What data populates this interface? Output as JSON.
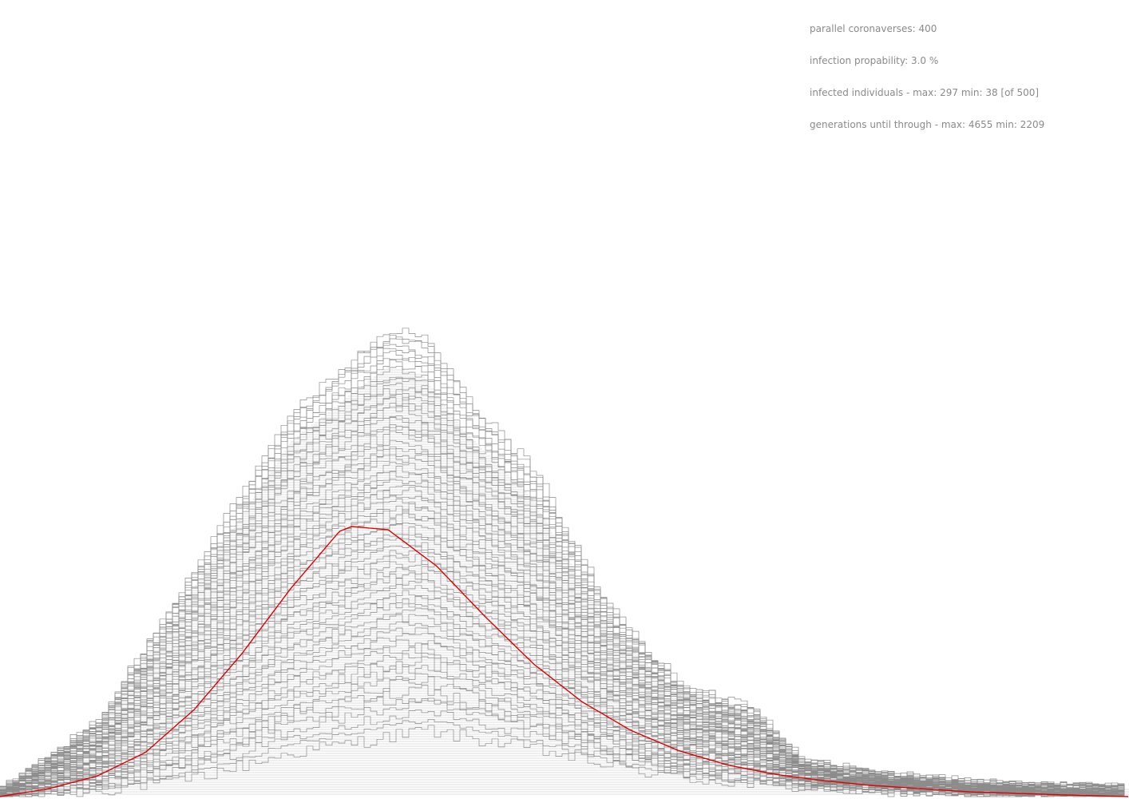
{
  "stats": {
    "parallel_coronaverses": "parallel coronaverses: 400",
    "infection_probability": "infection propability: 3.0 %",
    "infected_individuals": "infected individuals - max: 297 min: 38 [of 500]",
    "generations_until_through": "generations until through - max: 4655 min: 2209"
  },
  "chart_data": {
    "type": "line",
    "title": "",
    "xlabel": "",
    "ylabel": "",
    "grid": false,
    "legend": "none",
    "colors": {
      "simulation": "#8c8c8c",
      "average": "#e00000",
      "background": "#ffffff"
    },
    "population": 500,
    "runs": 400,
    "xlim": [
      0,
      4655
    ],
    "ylim": [
      0,
      300
    ],
    "simulation_envelope": {
      "name": "",
      "x": [
        0,
        400,
        800,
        1200,
        1600,
        1750,
        1900,
        2200,
        2500,
        2800,
        3100,
        3300,
        3600,
        4000,
        4300,
        4655
      ],
      "max": [
        4,
        48,
        145,
        245,
        297,
        290,
        255,
        205,
        120,
        70,
        55,
        22,
        14,
        8,
        6,
        5
      ],
      "min": [
        0,
        4,
        12,
        28,
        38,
        42,
        38,
        30,
        20,
        12,
        8,
        6,
        4,
        2,
        1,
        0
      ]
    },
    "average_curve": {
      "name": "",
      "x": [
        0,
        200,
        400,
        600,
        800,
        1000,
        1200,
        1400,
        1450,
        1600,
        1800,
        2000,
        2200,
        2400,
        2600,
        2800,
        3000,
        3200,
        3400,
        3600,
        3800,
        4000,
        4200,
        4400,
        4655
      ],
      "y": [
        0,
        5,
        13,
        28,
        55,
        91,
        132,
        168,
        171,
        169,
        146,
        114,
        84,
        60,
        42,
        29,
        20,
        14,
        10,
        7,
        5,
        3,
        2,
        1,
        0
      ]
    }
  }
}
